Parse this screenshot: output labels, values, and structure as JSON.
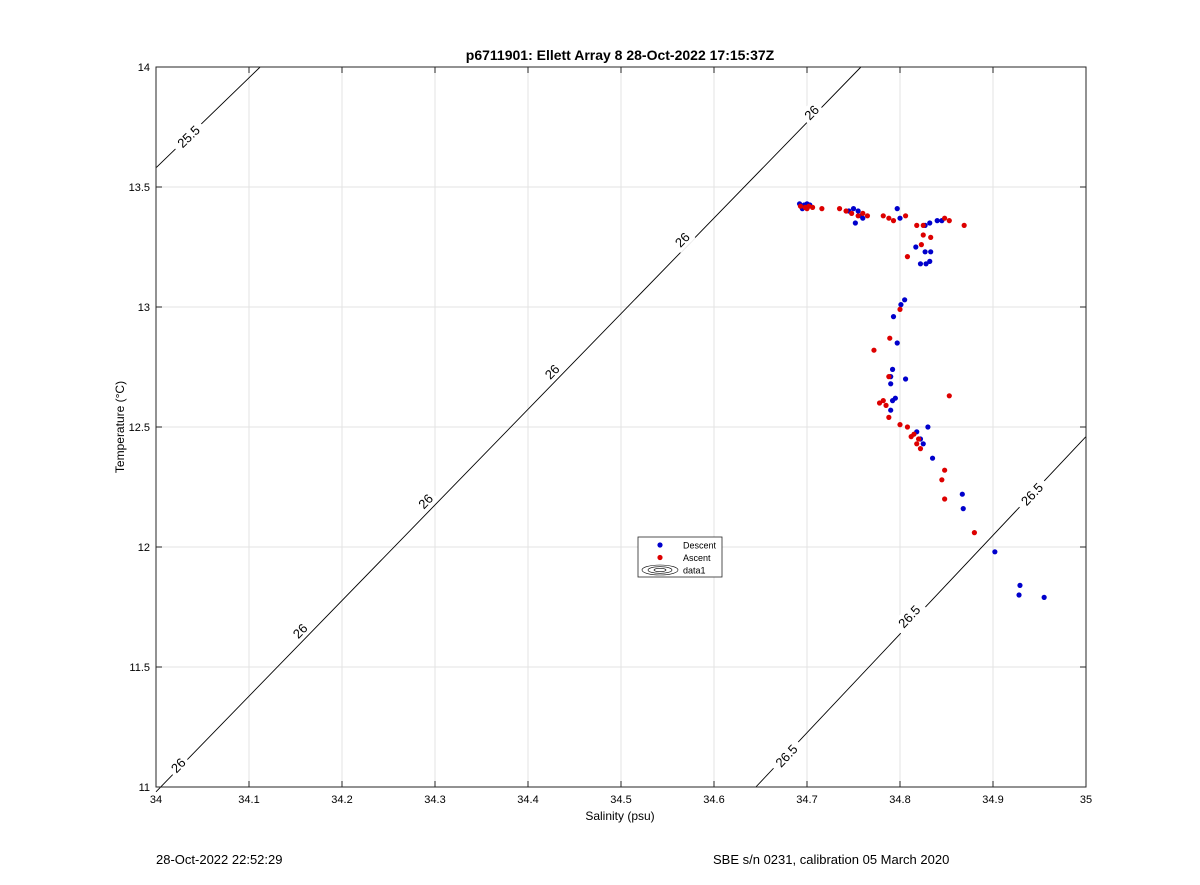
{
  "chart_data": {
    "type": "scatter",
    "title": "p6711901: Ellett Array 8 28-Oct-2022 17:15:37Z",
    "xlabel": "Salinity (psu)",
    "ylabel": "Temperature (°C)",
    "xlim": [
      34,
      35
    ],
    "ylim": [
      11,
      14
    ],
    "xticks": [
      "34",
      "34.1",
      "34.2",
      "34.3",
      "34.4",
      "34.5",
      "34.6",
      "34.7",
      "34.8",
      "34.9",
      "35"
    ],
    "yticks": [
      "11",
      "11.5",
      "12",
      "12.5",
      "13",
      "13.5",
      "14"
    ],
    "grid": true,
    "legend": {
      "placement": "center",
      "entries": [
        "Descent",
        "Ascent",
        "data1"
      ]
    },
    "colors": {
      "descent": "#0000cc",
      "ascent": "#dd0000",
      "contour": "#000000",
      "grid": "#e3e3e3"
    },
    "series": [
      {
        "name": "Descent",
        "points": [
          [
            34.692,
            13.43
          ],
          [
            34.697,
            13.425
          ],
          [
            34.7,
            13.43
          ],
          [
            34.703,
            13.425
          ],
          [
            34.695,
            13.41
          ],
          [
            34.745,
            13.4
          ],
          [
            34.75,
            13.41
          ],
          [
            34.755,
            13.4
          ],
          [
            34.752,
            13.35
          ],
          [
            34.758,
            13.38
          ],
          [
            34.76,
            13.37
          ],
          [
            34.797,
            13.41
          ],
          [
            34.8,
            13.37
          ],
          [
            34.827,
            13.34
          ],
          [
            34.832,
            13.35
          ],
          [
            34.84,
            13.36
          ],
          [
            34.845,
            13.36
          ],
          [
            34.817,
            13.25
          ],
          [
            34.827,
            13.23
          ],
          [
            34.833,
            13.23
          ],
          [
            34.822,
            13.18
          ],
          [
            34.828,
            13.18
          ],
          [
            34.832,
            13.19
          ],
          [
            34.805,
            13.03
          ],
          [
            34.801,
            13.01
          ],
          [
            34.793,
            12.96
          ],
          [
            34.797,
            12.85
          ],
          [
            34.792,
            12.74
          ],
          [
            34.79,
            12.71
          ],
          [
            34.806,
            12.7
          ],
          [
            34.79,
            12.68
          ],
          [
            34.795,
            12.62
          ],
          [
            34.792,
            12.61
          ],
          [
            34.79,
            12.57
          ],
          [
            34.83,
            12.5
          ],
          [
            34.818,
            12.48
          ],
          [
            34.822,
            12.45
          ],
          [
            34.825,
            12.43
          ],
          [
            34.835,
            12.37
          ],
          [
            34.867,
            12.22
          ],
          [
            34.868,
            12.16
          ],
          [
            34.902,
            11.98
          ],
          [
            34.929,
            11.84
          ],
          [
            34.928,
            11.8
          ],
          [
            34.955,
            11.79
          ]
        ]
      },
      {
        "name": "Ascent",
        "points": [
          [
            34.693,
            13.42
          ],
          [
            34.698,
            13.415
          ],
          [
            34.702,
            13.42
          ],
          [
            34.706,
            13.415
          ],
          [
            34.7,
            13.41
          ],
          [
            34.716,
            13.41
          ],
          [
            34.735,
            13.41
          ],
          [
            34.742,
            13.4
          ],
          [
            34.748,
            13.39
          ],
          [
            34.755,
            13.38
          ],
          [
            34.76,
            13.39
          ],
          [
            34.765,
            13.38
          ],
          [
            34.782,
            13.38
          ],
          [
            34.788,
            13.37
          ],
          [
            34.793,
            13.36
          ],
          [
            34.806,
            13.38
          ],
          [
            34.818,
            13.34
          ],
          [
            34.825,
            13.34
          ],
          [
            34.848,
            13.37
          ],
          [
            34.853,
            13.36
          ],
          [
            34.869,
            13.34
          ],
          [
            34.825,
            13.3
          ],
          [
            34.833,
            13.29
          ],
          [
            34.823,
            13.26
          ],
          [
            34.808,
            13.21
          ],
          [
            34.8,
            12.99
          ],
          [
            34.789,
            12.87
          ],
          [
            34.772,
            12.82
          ],
          [
            34.788,
            12.71
          ],
          [
            34.782,
            12.61
          ],
          [
            34.778,
            12.6
          ],
          [
            34.785,
            12.59
          ],
          [
            34.788,
            12.54
          ],
          [
            34.8,
            12.51
          ],
          [
            34.808,
            12.5
          ],
          [
            34.815,
            12.47
          ],
          [
            34.82,
            12.45
          ],
          [
            34.812,
            12.46
          ],
          [
            34.818,
            12.43
          ],
          [
            34.822,
            12.41
          ],
          [
            34.853,
            12.63
          ],
          [
            34.848,
            12.32
          ],
          [
            34.845,
            12.28
          ],
          [
            34.848,
            12.2
          ],
          [
            34.88,
            12.06
          ]
        ]
      }
    ],
    "isopycnals": [
      {
        "sigma": "25.5",
        "line": [
          [
            34.0,
            13.58
          ],
          [
            34.112,
            14.0
          ]
        ]
      },
      {
        "sigma": "26",
        "line": [
          [
            34.0,
            10.98
          ],
          [
            34.758,
            14.0
          ]
        ]
      },
      {
        "sigma": "26.5",
        "line": [
          [
            34.645,
            11.0
          ],
          [
            35.0,
            12.46
          ]
        ]
      }
    ],
    "contour_labels": [
      {
        "text": "25.5",
        "at": [
          34.035,
          13.71
        ]
      },
      {
        "text": "26",
        "at": [
          34.705,
          13.81
        ]
      },
      {
        "text": "26",
        "at": [
          34.566,
          13.28
        ]
      },
      {
        "text": "26",
        "at": [
          34.426,
          12.73
        ]
      },
      {
        "text": "26",
        "at": [
          34.29,
          12.19
        ]
      },
      {
        "text": "26",
        "at": [
          34.155,
          11.65
        ]
      },
      {
        "text": "26",
        "at": [
          34.024,
          11.09
        ]
      },
      {
        "text": "26.5",
        "at": [
          34.942,
          12.22
        ]
      },
      {
        "text": "26.5",
        "at": [
          34.81,
          11.71
        ]
      },
      {
        "text": "26.5",
        "at": [
          34.678,
          11.13
        ]
      }
    ]
  },
  "footer": {
    "timestamp": "28-Oct-2022 22:52:29",
    "instrument": "SBE s/n 0231, calibration 05 March 2020"
  }
}
